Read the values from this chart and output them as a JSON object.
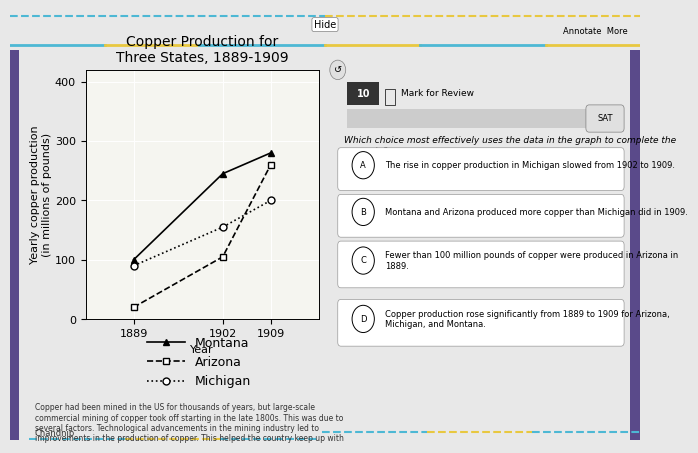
{
  "title": "Copper Production for\nThree States, 1889-1909",
  "xlabel": "Year",
  "ylabel": "Yearly copper production\n(in millions of pounds)",
  "years": [
    1889,
    1902,
    1909
  ],
  "montana": [
    100,
    245,
    280
  ],
  "arizona": [
    20,
    105,
    260
  ],
  "michigan": [
    90,
    155,
    200
  ],
  "ylim": [
    0,
    420
  ],
  "yticks": [
    0,
    100,
    200,
    300,
    400
  ],
  "left_bg": "#e8e8e8",
  "right_bg": "#f0f0f0",
  "plot_bg": "#f5f5f0",
  "top_bar_color": "#c8c8c8",
  "title_fontsize": 10,
  "label_fontsize": 8,
  "tick_fontsize": 8,
  "question_num": "10",
  "question_text": "Which choice most effectively uses the data in the graph to complete the example?",
  "choices": [
    "The rise in copper production in Michigan slowed from 1902 to 1909.",
    "Montana and Arizona produced more copper than Michigan did in 1909.",
    "Fewer than 100 million pounds of copper were produced in Arizona in\n1889.",
    "Copper production rose significantly from 1889 to 1909 for Arizona,\nMichigan, and Montana."
  ],
  "choice_labels": [
    "A",
    "B",
    "C",
    "D"
  ],
  "body_text": "Copper had been mined in the US for thousands of years, but large-scale\ncommercial mining of copper took off starting in the late 1800s. This was due to\nseveral factors. Technological advancements in the mining industry led to\nimprovements in the production of copper. This helped the country keep up with",
  "footer_text": "Chandnip",
  "hide_text": "Hide",
  "annotate_text": "Annotate  More"
}
